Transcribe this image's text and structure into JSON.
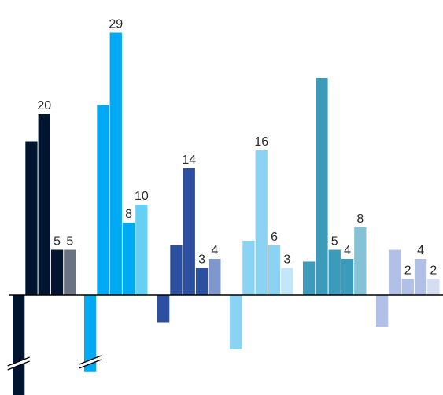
{
  "chart_data": {
    "type": "bar",
    "grid": false,
    "legend": "none",
    "ylim": [
      -13,
      30
    ],
    "axis_breaks_on_groups": [
      0,
      1
    ],
    "groups": [
      {
        "values": [
          -13,
          17,
          20,
          5,
          5
        ],
        "colors": [
          "#011531",
          "#011531",
          "#011531",
          "#011531",
          "#6b7280"
        ],
        "labels": [
          "",
          "",
          "20",
          "5",
          "5"
        ]
      },
      {
        "values": [
          -8.5,
          21,
          29,
          8,
          10
        ],
        "colors": [
          "#00a9f4",
          "#00a9f4",
          "#00a9f4",
          "#00a9f4",
          "#66d0f4"
        ],
        "labels": [
          "",
          "",
          "29",
          "8",
          "10"
        ]
      },
      {
        "values": [
          -3,
          5.5,
          14,
          3,
          4
        ],
        "colors": [
          "#2d4f9f",
          "#2d4f9f",
          "#2d4f9f",
          "#2d4f9f",
          "#7f97cc"
        ],
        "labels": [
          "",
          "",
          "14",
          "3",
          "4"
        ]
      },
      {
        "values": [
          -6,
          6,
          16,
          5.5,
          3
        ],
        "colors": [
          "#8ad3f2",
          "#8ad3f2",
          "#8ad3f2",
          "#8ad3f2",
          "#c1e7f9"
        ],
        "labels": [
          "",
          "",
          "16",
          "6",
          "3"
        ]
      },
      {
        "values": [
          3.7,
          24,
          5,
          4,
          7.5
        ],
        "colors": [
          "#3c9bbb",
          "#3c9bbb",
          "#3c9bbb",
          "#3c9bbb",
          "#86c2d5"
        ],
        "labels": [
          "",
          "",
          "5",
          "4",
          "8"
        ]
      },
      {
        "values": [
          -3.5,
          5,
          1.8,
          4,
          1.8
        ],
        "colors": [
          "#b1c0e6",
          "#b1c0e6",
          "#b1c0e6",
          "#b1c0e6",
          "#d5ddf1"
        ],
        "labels": [
          "",
          "",
          "2",
          "4",
          "2"
        ]
      }
    ]
  }
}
